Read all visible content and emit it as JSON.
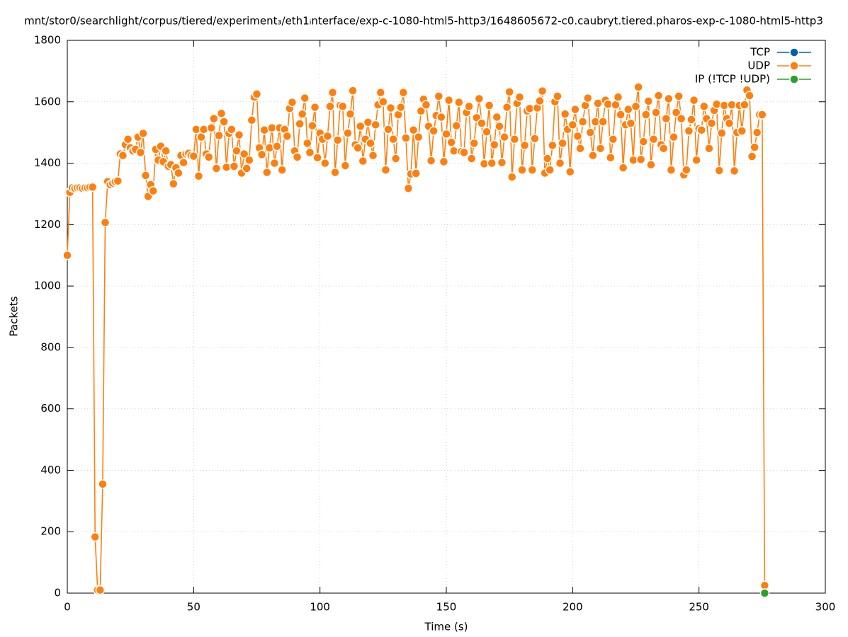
{
  "chart_data": {
    "type": "line",
    "title": "mnt/stor0/searchlight/corpus/tiered/experiment₃/eth1ᵢnterface/exp-c-1080-html5-http3/1648605672-c0.caubryt.tiered.pharos-exp-c-1080-html5-http3",
    "x_label": "Time (s)",
    "y_label": "Packets",
    "xlim": [
      0,
      300
    ],
    "xticks": [
      0,
      50,
      100,
      150,
      200,
      250,
      300
    ],
    "ylim": [
      0,
      1800
    ],
    "yticks": [
      0,
      200,
      400,
      600,
      800,
      1000,
      1200,
      1400,
      1600,
      1800
    ],
    "grid": true,
    "legend": "top-right",
    "series": [
      {
        "name": "TCP",
        "color": "#0060ad",
        "x": [],
        "values": []
      },
      {
        "name": "UDP",
        "color": "#ff7f0e",
        "x": [
          0,
          1,
          2,
          3,
          4,
          5,
          6,
          7,
          8,
          9,
          10,
          11,
          12,
          13,
          14,
          15,
          16,
          17,
          18,
          19,
          20,
          21,
          22,
          23,
          24,
          25,
          26,
          27,
          28,
          29,
          30,
          31,
          32,
          33,
          34,
          35,
          36,
          37,
          38,
          39,
          40,
          41,
          42,
          43,
          44,
          45,
          46,
          47,
          48,
          49,
          50,
          51,
          52,
          53,
          54,
          55,
          56,
          57,
          58,
          59,
          60,
          61,
          62,
          63,
          64,
          65,
          66,
          67,
          68,
          69,
          70,
          71,
          72,
          73,
          74,
          75,
          76,
          77,
          78,
          79,
          80,
          81,
          82,
          83,
          84,
          85,
          86,
          87,
          88,
          89,
          90,
          91,
          92,
          93,
          94,
          95,
          96,
          97,
          98,
          99,
          100,
          101,
          102,
          103,
          104,
          105,
          106,
          107,
          108,
          109,
          110,
          111,
          112,
          113,
          114,
          115,
          116,
          117,
          118,
          119,
          120,
          121,
          122,
          123,
          124,
          125,
          126,
          127,
          128,
          129,
          130,
          131,
          132,
          133,
          134,
          135,
          136,
          137,
          138,
          139,
          140,
          141,
          142,
          143,
          144,
          145,
          146,
          147,
          148,
          149,
          150,
          151,
          152,
          153,
          154,
          155,
          156,
          157,
          158,
          159,
          160,
          161,
          162,
          163,
          164,
          165,
          166,
          167,
          168,
          169,
          170,
          171,
          172,
          173,
          174,
          175,
          176,
          177,
          178,
          179,
          180,
          181,
          182,
          183,
          184,
          185,
          186,
          187,
          188,
          189,
          190,
          191,
          192,
          193,
          194,
          195,
          196,
          197,
          198,
          199,
          200,
          201,
          202,
          203,
          204,
          205,
          206,
          207,
          208,
          209,
          210,
          211,
          212,
          213,
          214,
          215,
          216,
          217,
          218,
          219,
          220,
          221,
          222,
          223,
          224,
          225,
          226,
          227,
          228,
          229,
          230,
          231,
          232,
          233,
          234,
          235,
          236,
          237,
          238,
          239,
          240,
          241,
          242,
          243,
          244,
          245,
          246,
          247,
          248,
          249,
          250,
          251,
          252,
          253,
          254,
          255,
          256,
          257,
          258,
          259,
          260,
          261,
          262,
          263,
          264,
          265,
          266,
          267,
          268,
          269,
          270,
          271,
          272,
          273,
          274,
          275,
          276
        ],
        "values": [
          1100,
          1305,
          1320,
          1318,
          1320,
          1320,
          1318,
          1320,
          1320,
          1322,
          1322,
          183,
          10,
          10,
          355,
          1207,
          1340,
          1330,
          1335,
          1340,
          1342,
          1430,
          1425,
          1460,
          1478,
          1450,
          1440,
          1445,
          1485,
          1435,
          1497,
          1360,
          1292,
          1330,
          1310,
          1445,
          1410,
          1455,
          1405,
          1440,
          1390,
          1395,
          1333,
          1385,
          1368,
          1425,
          1402,
          1430,
          1432,
          1425,
          1423,
          1510,
          1358,
          1485,
          1510,
          1430,
          1420,
          1515,
          1545,
          1383,
          1490,
          1562,
          1535,
          1387,
          1497,
          1510,
          1390,
          1440,
          1492,
          1368,
          1430,
          1383,
          1410,
          1540,
          1615,
          1625,
          1450,
          1428,
          1508,
          1370,
          1450,
          1515,
          1400,
          1455,
          1515,
          1378,
          1510,
          1488,
          1578,
          1598,
          1440,
          1420,
          1528,
          1560,
          1612,
          1465,
          1435,
          1522,
          1582,
          1418,
          1498,
          1478,
          1400,
          1488,
          1585,
          1630,
          1370,
          1475,
          1588,
          1585,
          1392,
          1498,
          1560,
          1636,
          1460,
          1450,
          1520,
          1407,
          1478,
          1533,
          1465,
          1425,
          1525,
          1590,
          1630,
          1600,
          1378,
          1510,
          1580,
          1478,
          1415,
          1558,
          1582,
          1630,
          1482,
          1318,
          1365,
          1508,
          1367,
          1485,
          1570,
          1608,
          1590,
          1520,
          1408,
          1505,
          1555,
          1618,
          1550,
          1405,
          1495,
          1605,
          1468,
          1440,
          1522,
          1598,
          1438,
          1435,
          1565,
          1585,
          1415,
          1465,
          1548,
          1610,
          1530,
          1398,
          1502,
          1588,
          1400,
          1460,
          1550,
          1520,
          1402,
          1485,
          1582,
          1632,
          1355,
          1478,
          1595,
          1615,
          1378,
          1458,
          1570,
          1578,
          1378,
          1480,
          1580,
          1603,
          1635,
          1368,
          1415,
          1378,
          1458,
          1600,
          1618,
          1400,
          1465,
          1560,
          1510,
          1372,
          1525,
          1575,
          1488,
          1448,
          1535,
          1588,
          1612,
          1500,
          1425,
          1535,
          1595,
          1448,
          1535,
          1605,
          1592,
          1418,
          1478,
          1590,
          1615,
          1558,
          1385,
          1525,
          1575,
          1530,
          1410,
          1585,
          1648,
          1412,
          1470,
          1558,
          1602,
          1395,
          1478,
          1565,
          1620,
          1460,
          1448,
          1545,
          1610,
          1378,
          1485,
          1565,
          1618,
          1545,
          1362,
          1378,
          1505,
          1542,
          1605,
          1410,
          1512,
          1508,
          1585,
          1545,
          1448,
          1530,
          1572,
          1592,
          1376,
          1498,
          1588,
          1545,
          1530,
          1590,
          1375,
          1500,
          1588,
          1505,
          1590,
          1638,
          1620,
          1422,
          1452,
          1500,
          1558,
          1558,
          25
        ]
      },
      {
        "name": "IP (!TCP  !UDP)",
        "color": "#2ca02c",
        "x": [
          276
        ],
        "values": [
          0
        ]
      }
    ]
  }
}
